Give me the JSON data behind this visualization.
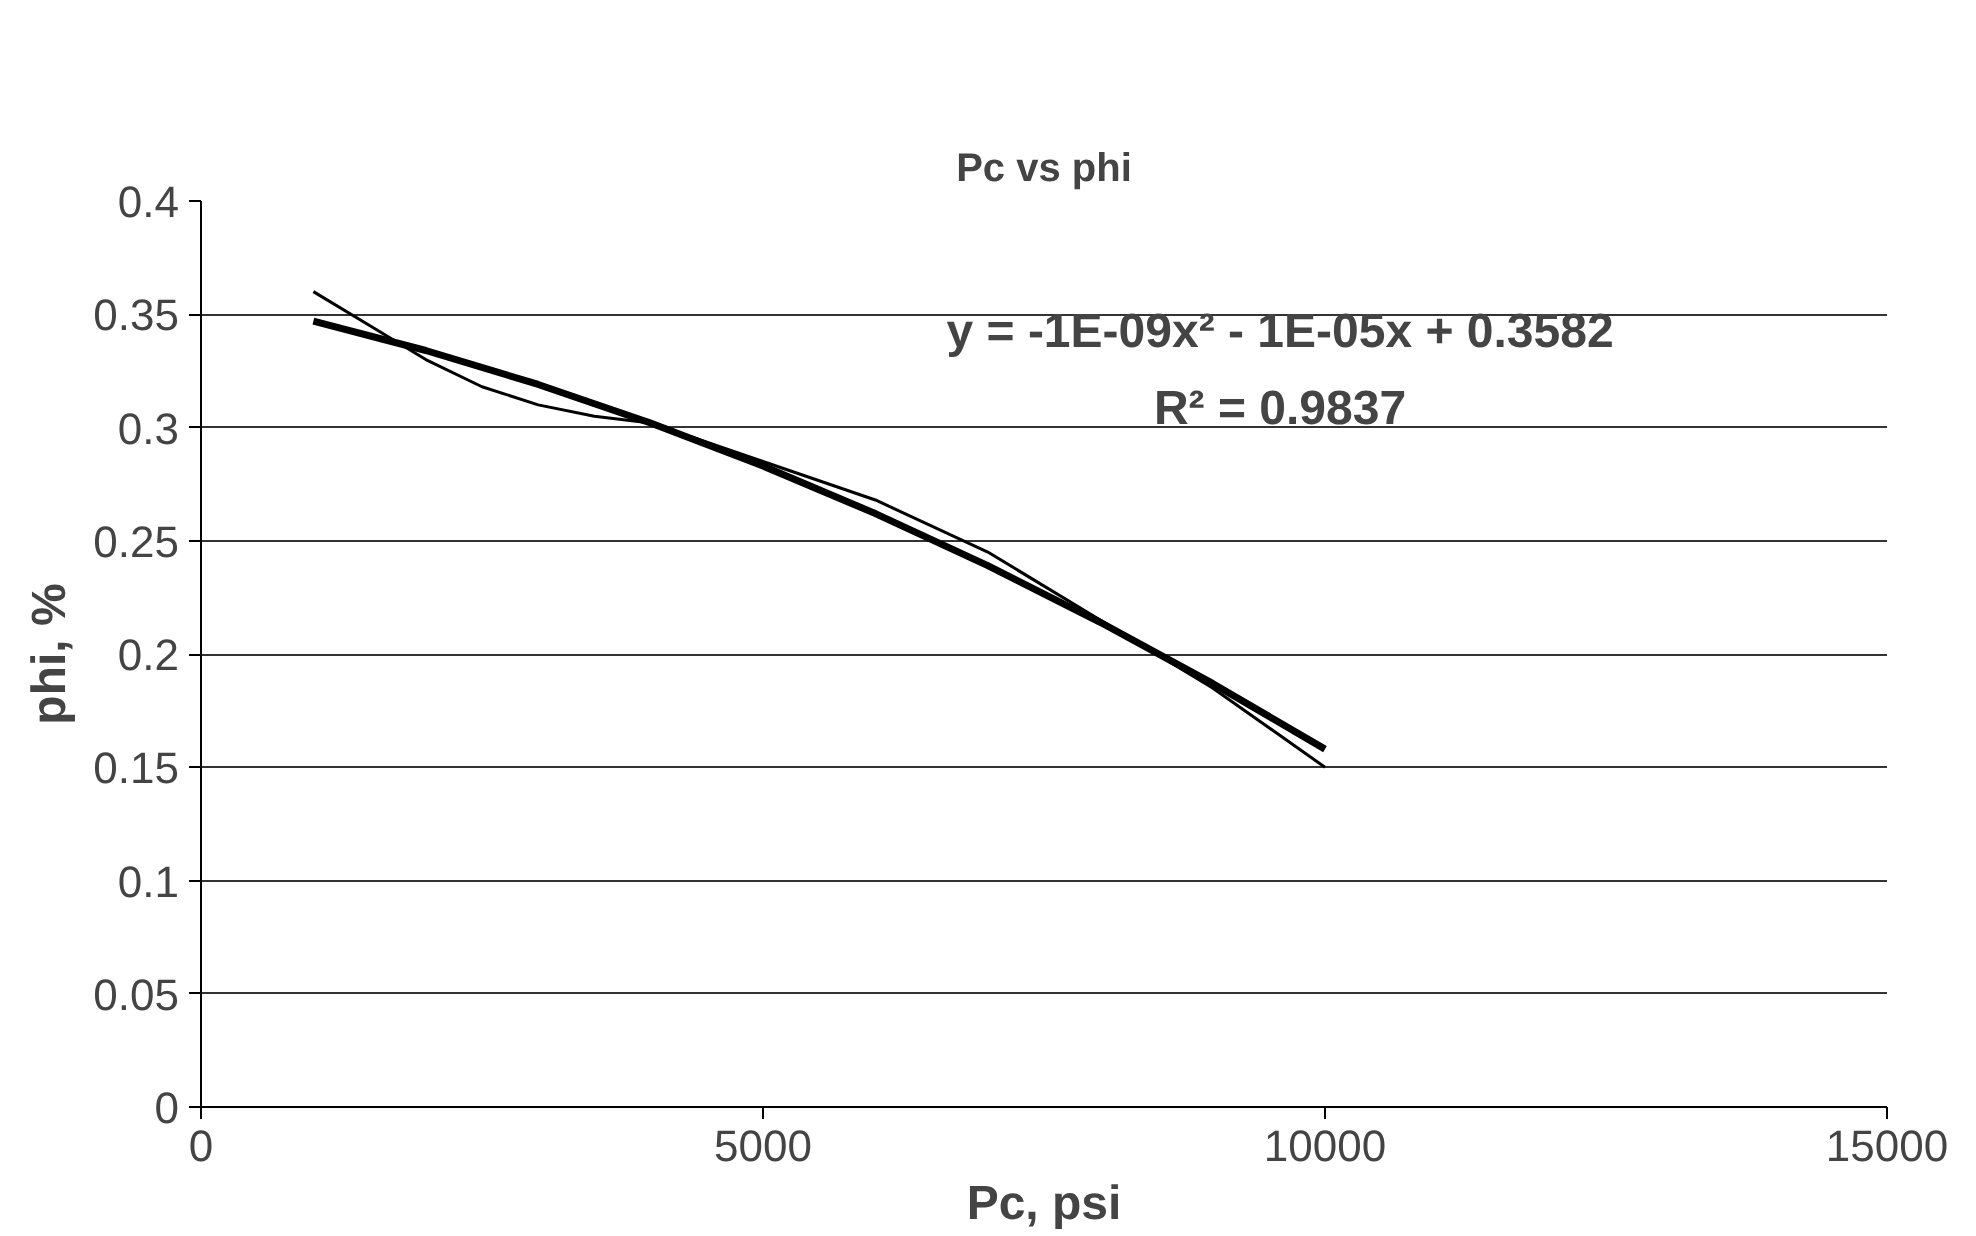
{
  "chart_data": {
    "type": "line",
    "title": "Pc vs phi",
    "xlabel": "Pc, psi",
    "ylabel": "phi, %",
    "xlim": [
      0,
      15000
    ],
    "xticks": [
      0,
      5000,
      10000,
      15000
    ],
    "ylim": [
      0,
      0.4
    ],
    "yticks": [
      0,
      0.05,
      0.1,
      0.15,
      0.2,
      0.25,
      0.3,
      0.35,
      0.4
    ],
    "grid": "y",
    "marker": "none",
    "line_style": "solid",
    "series": [
      {
        "color": "#000000",
        "x": [
          1000,
          1500,
          2000,
          2500,
          3000,
          3500,
          4000,
          5000,
          6000,
          7000,
          8000,
          9000,
          10000
        ],
        "values": [
          0.36,
          0.345,
          0.33,
          0.318,
          0.31,
          0.305,
          0.302,
          0.285,
          0.268,
          0.245,
          0.215,
          0.185,
          0.15
        ]
      },
      {
        "color": "#000000",
        "x": [
          1000,
          2000,
          3000,
          4000,
          5000,
          6000,
          7000,
          8000,
          9000,
          10000
        ],
        "values": [
          0.347,
          0.334,
          0.319,
          0.302,
          0.283,
          0.262,
          0.239,
          0.214,
          0.187,
          0.158
        ]
      }
    ],
    "annotations": [
      "y = -1E-09x² - 1E-05x + 0.3582",
      "R² = 0.9837"
    ]
  }
}
